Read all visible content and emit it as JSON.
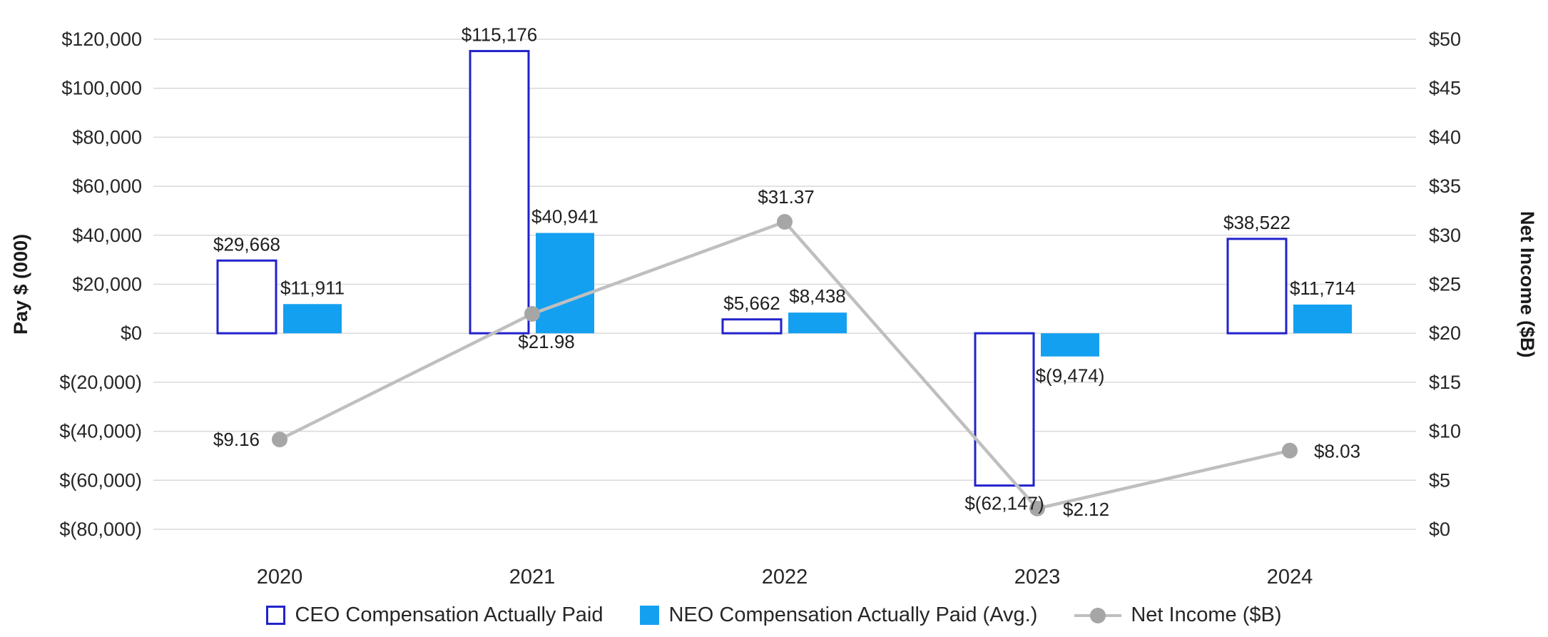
{
  "chart_data": {
    "type": "combo",
    "title": "",
    "categories": [
      "2020",
      "2021",
      "2022",
      "2023",
      "2024"
    ],
    "series": [
      {
        "name": "CEO Compensation Actually Paid",
        "type": "bar",
        "style": "outline",
        "color": "#2222cc",
        "values": [
          29668,
          115176,
          5662,
          -62147,
          38522
        ],
        "labels": [
          "$29,668",
          "$115,176",
          "$5,662",
          "$(62,147)",
          "$38,522"
        ]
      },
      {
        "name": "NEO Compensation Actually Paid (Avg.)",
        "type": "bar",
        "style": "solid",
        "color": "#14a0f0",
        "values": [
          11911,
          40941,
          8438,
          -9474,
          11714
        ],
        "labels": [
          "$11,911",
          "$40,941",
          "$8,438",
          "$(9,474)",
          "$11,714"
        ]
      },
      {
        "name": "Net Income ($B)",
        "type": "line",
        "color": "#bfbfbf",
        "marker_color": "#a6a6a6",
        "values": [
          9.16,
          21.98,
          31.37,
          2.12,
          8.03
        ],
        "labels": [
          "$9.16",
          "$21.98",
          "$31.37",
          "$2.12",
          "$8.03"
        ]
      }
    ],
    "left_axis": {
      "title": "Pay $ (000)",
      "min": -80000,
      "max": 120000,
      "step": 20000,
      "tick_labels": [
        "$120,000",
        "$100,000",
        "$80,000",
        "$60,000",
        "$40,000",
        "$20,000",
        "$0",
        "$(20,000)",
        "$(40,000)",
        "$(60,000)",
        "$(80,000)"
      ]
    },
    "right_axis": {
      "title": "Net Income ($B)",
      "min": 0,
      "max": 50,
      "step": 5,
      "tick_labels": [
        "$50",
        "$45",
        "$40",
        "$35",
        "$30",
        "$25",
        "$20",
        "$15",
        "$10",
        "$5",
        "$0"
      ]
    },
    "gridline_color": "#d9d9d9",
    "grid": true,
    "legend_position": "bottom",
    "legend": [
      {
        "label": "CEO Compensation Actually Paid",
        "swatch": "outline-square"
      },
      {
        "label": "NEO Compensation Actually Paid (Avg.)",
        "swatch": "solid-square"
      },
      {
        "label": "Net Income ($B)",
        "swatch": "line-marker"
      }
    ]
  }
}
